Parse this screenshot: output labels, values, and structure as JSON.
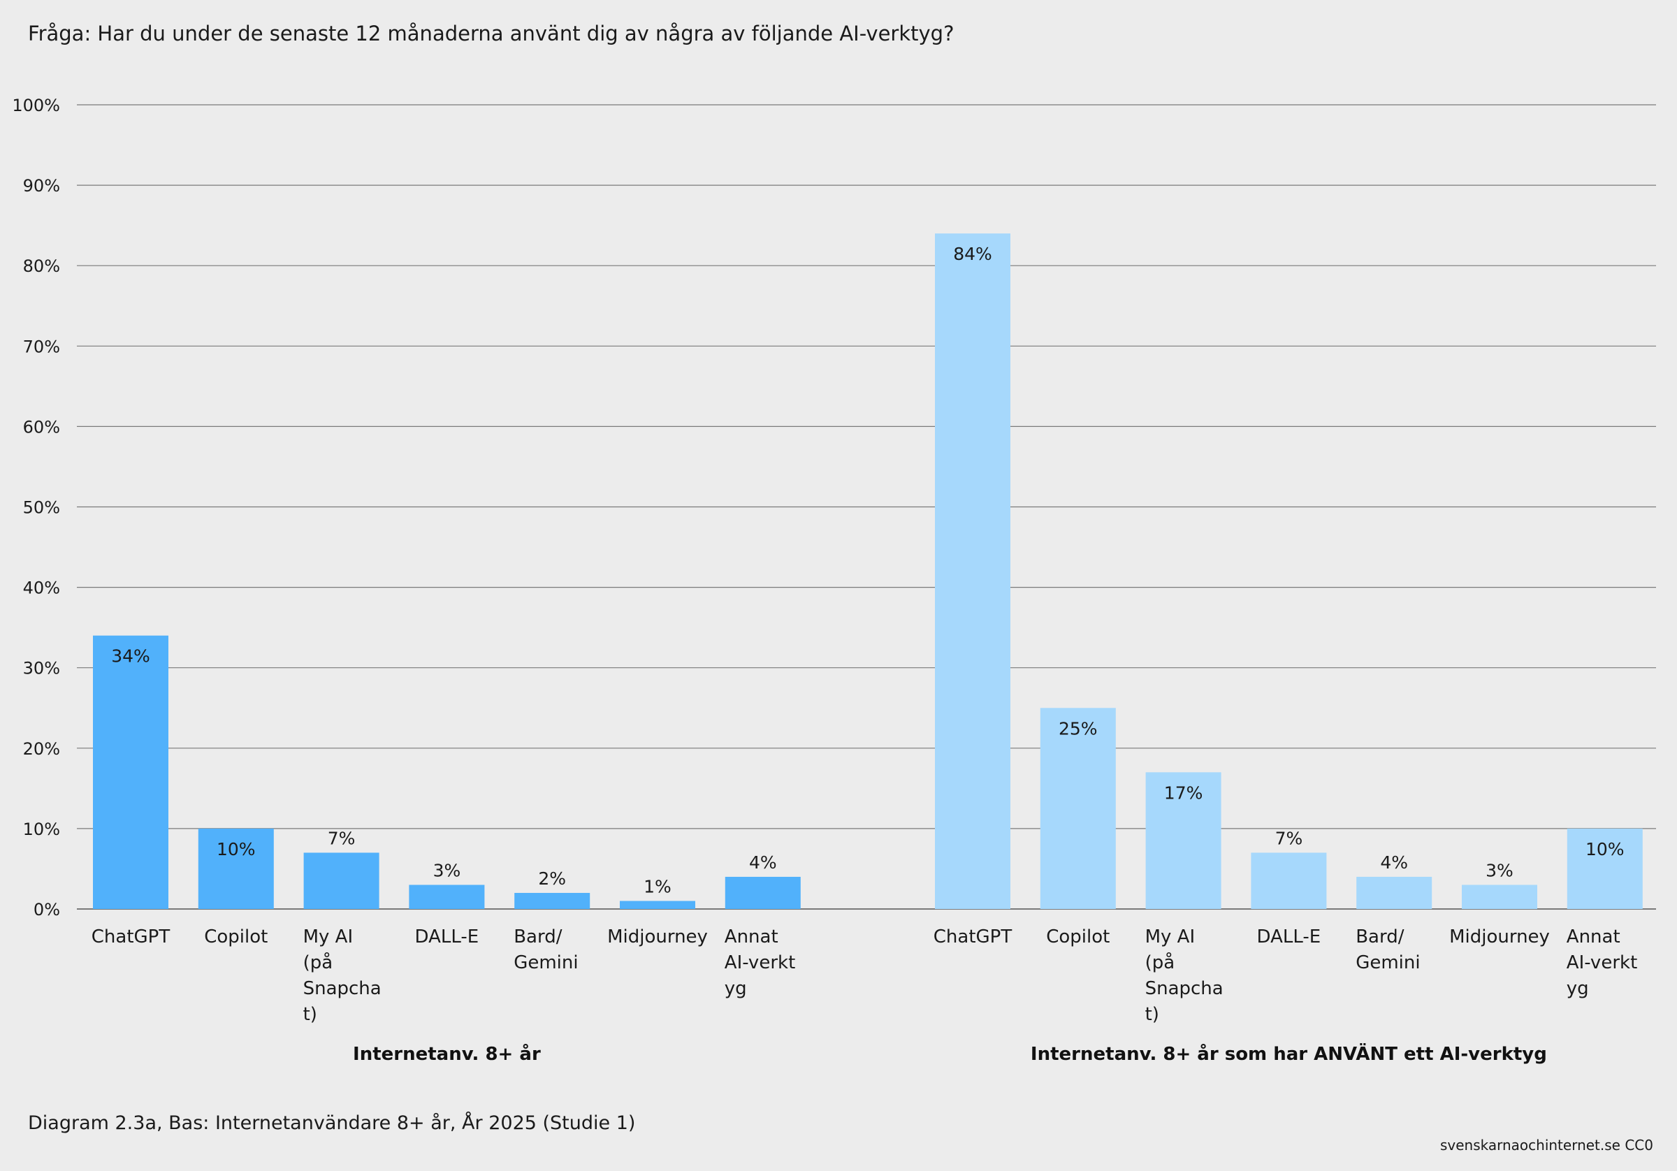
{
  "title": "Fråga: Har du under de senaste 12 månaderna använt dig av några av följande AI-verktyg?",
  "footnote": "Diagram 2.3a, Bas: Internetanvändare 8+ år, År 2025 (Studie 1)",
  "source": "svenskarnaochinternet.se CC0",
  "chart_data": {
    "type": "bar",
    "title": "Fråga: Har du under de senaste 12 månaderna använt dig av några av följande AI-verktyg?",
    "ylim": [
      0,
      100
    ],
    "yticks": [
      "0%",
      "10%",
      "20%",
      "30%",
      "40%",
      "50%",
      "60%",
      "70%",
      "80%",
      "90%",
      "100%"
    ],
    "grid": true,
    "categories": [
      [
        "ChatGPT"
      ],
      [
        "Copilot"
      ],
      [
        "My AI",
        "(på",
        "Snapcha",
        "t)"
      ],
      [
        "DALL-E"
      ],
      [
        "Bard/",
        "Gemini"
      ],
      [
        "Midjourney"
      ],
      [
        "Annat",
        "AI-verkt",
        "yg"
      ]
    ],
    "groups": [
      {
        "name": "Internetanv. 8+ år",
        "color": "#51b1fb",
        "values": [
          34,
          10,
          7,
          3,
          2,
          1,
          4
        ],
        "labels": [
          "34%",
          "10%",
          "7%",
          "3%",
          "2%",
          "1%",
          "4%"
        ]
      },
      {
        "name": "Internetanv. 8+ år som har ANVÄNT ett AI-verktyg",
        "color": "#a6d8fc",
        "values": [
          84,
          25,
          17,
          7,
          4,
          3,
          10
        ],
        "labels": [
          "84%",
          "25%",
          "17%",
          "7%",
          "4%",
          "3%",
          "10%"
        ]
      }
    ]
  }
}
